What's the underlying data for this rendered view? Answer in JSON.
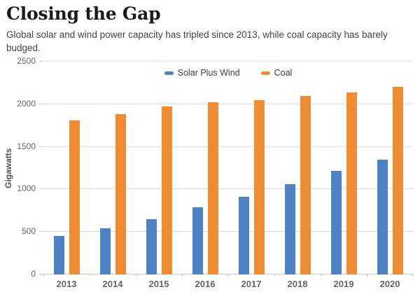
{
  "header": {
    "title": "Closing the Gap",
    "subtitle": "Global solar and wind power capacity has tripled since 2013, while coal capacity has barely budged."
  },
  "chart_data": {
    "type": "bar",
    "title": "Closing the Gap",
    "subtitle": "Global solar and wind power capacity has tripled since 2013, while coal capacity has barely budged.",
    "categories": [
      "2013",
      "2014",
      "2015",
      "2016",
      "2017",
      "2018",
      "2019",
      "2020"
    ],
    "series": [
      {
        "name": "Solar Plus Wind",
        "color": "#4d82c4",
        "values": [
          450,
          540,
          650,
          790,
          910,
          1060,
          1220,
          1350
        ]
      },
      {
        "name": "Coal",
        "color": "#ee8c33",
        "values": [
          1810,
          1880,
          1970,
          2020,
          2050,
          2100,
          2140,
          2200
        ]
      }
    ],
    "xlabel": "",
    "ylabel": "Gigawatts",
    "ylim": [
      0,
      2500
    ],
    "yticks": [
      0,
      500,
      1000,
      1500,
      2000,
      2500
    ],
    "grid": true,
    "legend_position": "top-center"
  },
  "colors": {
    "solar_plus_wind": "#4d82c4",
    "coal": "#ee8c33",
    "gridline": "#dedede",
    "axis_line": "#c6c6c6",
    "tick_text": "#666666",
    "title_text": "#1a1a1a",
    "subtitle_text": "#424242"
  }
}
